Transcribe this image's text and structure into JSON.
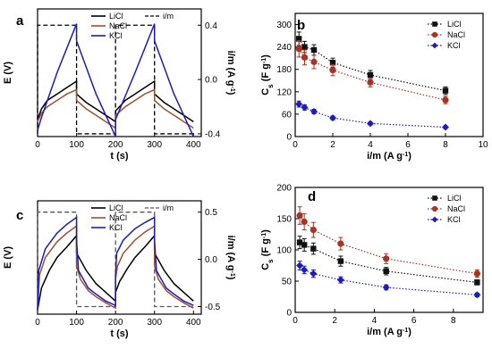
{
  "chart_data": [
    {
      "panel": "a",
      "type": "line",
      "xlabel": "t (s)",
      "ylabel": "E (V)",
      "y2label_parts": [
        "i/m (A g",
        "-1",
        ")"
      ],
      "xlim": [
        0,
        420
      ],
      "ylim": [
        -0.05,
        0.55
      ],
      "y2lim": [
        -0.42,
        0.52
      ],
      "xticks": [
        0,
        100,
        200,
        300,
        400
      ],
      "yticks": [],
      "y2ticks": [
        -0.4,
        0.0,
        0.4
      ],
      "y2tick_labels": [
        "-0.4",
        "0.0",
        "0.4"
      ],
      "legend": {
        "position": "top",
        "entries": [
          "LiCl",
          "NaCl",
          "KCl",
          "i/m"
        ]
      },
      "current_series": {
        "name": "i/m",
        "color": "#000000",
        "dash": true,
        "x": [
          0,
          0,
          100,
          100,
          200,
          200,
          300,
          300,
          400
        ],
        "y": [
          -0.4,
          0.4,
          0.4,
          -0.4,
          -0.4,
          0.4,
          0.4,
          -0.4,
          -0.4
        ]
      },
      "series": [
        {
          "name": "LiCl",
          "color": "#000000",
          "x": [
            0,
            10,
            25,
            50,
            75,
            100,
            100,
            125,
            150,
            175,
            200,
            200,
            225,
            250,
            275,
            300,
            300,
            325,
            350,
            375,
            400
          ],
          "y": [
            0.03,
            0.08,
            0.12,
            0.15,
            0.18,
            0.21,
            0.15,
            0.11,
            0.08,
            0.05,
            0.02,
            0.07,
            0.12,
            0.15,
            0.18,
            0.21,
            0.15,
            0.11,
            0.08,
            0.05,
            0.02
          ]
        },
        {
          "name": "NaCl",
          "color": "#a0522d",
          "x": [
            0,
            10,
            25,
            50,
            75,
            100,
            100,
            125,
            150,
            175,
            200,
            200,
            225,
            250,
            275,
            300,
            300,
            325,
            350,
            375,
            400
          ],
          "y": [
            0.02,
            0.06,
            0.09,
            0.12,
            0.15,
            0.17,
            0.12,
            0.08,
            0.05,
            0.02,
            -0.01,
            0.05,
            0.09,
            0.12,
            0.15,
            0.17,
            0.12,
            0.08,
            0.05,
            0.02,
            -0.01
          ]
        },
        {
          "name": "KCl",
          "color": "#1a1acc",
          "x": [
            0,
            10,
            50,
            100,
            100,
            150,
            200,
            200,
            250,
            300,
            300,
            350,
            400
          ],
          "y": [
            -0.02,
            0.04,
            0.25,
            0.48,
            0.4,
            0.15,
            -0.05,
            0.03,
            0.25,
            0.48,
            0.4,
            0.15,
            -0.05
          ]
        }
      ]
    },
    {
      "panel": "b",
      "type": "scatter",
      "xlabel": "i/m (A g-1)",
      "xlabel_parts": [
        "i/m (A g",
        "-1",
        ")"
      ],
      "ylabel_parts": [
        "C",
        "s",
        " (F g",
        "-1",
        ")"
      ],
      "xlim": [
        0,
        10
      ],
      "ylim": [
        0,
        330
      ],
      "xticks": [
        0,
        2,
        4,
        6,
        8,
        10
      ],
      "yticks": [
        0,
        60,
        120,
        180,
        240,
        300
      ],
      "legend": {
        "position": "top-right",
        "entries": [
          "LiCl",
          "NaCl",
          "KCl"
        ]
      },
      "series": [
        {
          "name": "LiCl",
          "color": "#111111",
          "marker": "square",
          "x": [
            0.2,
            0.5,
            1,
            2,
            4,
            8
          ],
          "y": [
            262,
            240,
            232,
            198,
            165,
            123
          ],
          "err": [
            18,
            15,
            14,
            12,
            12,
            10
          ]
        },
        {
          "name": "NaCl",
          "color": "#b03020",
          "marker": "circle",
          "x": [
            0.2,
            0.5,
            1,
            2,
            4,
            8
          ],
          "y": [
            235,
            212,
            200,
            178,
            145,
            98
          ],
          "err": [
            22,
            20,
            18,
            15,
            12,
            10
          ]
        },
        {
          "name": "KCl",
          "color": "#1a1acc",
          "marker": "diamond",
          "x": [
            0.2,
            0.5,
            1,
            2,
            4,
            8
          ],
          "y": [
            87,
            78,
            67,
            50,
            35,
            25
          ],
          "err": [
            8,
            7,
            6,
            5,
            4,
            3
          ]
        }
      ]
    },
    {
      "panel": "c",
      "type": "line",
      "xlabel": "t (s)",
      "ylabel": "E (V)",
      "y2label_parts": [
        "i/m (A g",
        "-1",
        ")"
      ],
      "xlim": [
        0,
        420
      ],
      "ylim": [
        -0.35,
        0.95
      ],
      "y2lim": [
        -0.58,
        0.62
      ],
      "xticks": [
        0,
        100,
        200,
        300,
        400
      ],
      "yticks": [],
      "y2ticks": [
        -0.5,
        0.0,
        0.5
      ],
      "y2tick_labels": [
        "-0.5",
        "0.0",
        "0.5"
      ],
      "legend": {
        "position": "top",
        "entries": [
          "LiCl",
          "NaCl",
          "KCl",
          "i/m"
        ]
      },
      "current_series": {
        "name": "i/m",
        "color": "#555555",
        "dash": true,
        "x": [
          0,
          0,
          100,
          100,
          200,
          200,
          300,
          300,
          400
        ],
        "y": [
          -0.5,
          0.5,
          0.5,
          -0.5,
          -0.5,
          0.5,
          0.5,
          -0.5,
          -0.5
        ]
      },
      "series": [
        {
          "name": "LiCl",
          "color": "#000000",
          "x": [
            0,
            10,
            30,
            50,
            75,
            100,
            100,
            125,
            150,
            175,
            200,
            200,
            210,
            230,
            250,
            275,
            300,
            300,
            325,
            350,
            375,
            400
          ],
          "y": [
            -0.3,
            -0.05,
            0.15,
            0.3,
            0.42,
            0.55,
            0.35,
            0.15,
            0.0,
            -0.1,
            -0.2,
            -0.1,
            0.02,
            0.17,
            0.3,
            0.42,
            0.55,
            0.35,
            0.15,
            0.0,
            -0.1,
            -0.2
          ]
        },
        {
          "name": "NaCl",
          "color": "#a0522d",
          "x": [
            0,
            5,
            20,
            50,
            75,
            100,
            100,
            110,
            130,
            150,
            175,
            200,
            200,
            205,
            220,
            250,
            275,
            300,
            300,
            310,
            330,
            350,
            375,
            400
          ],
          "y": [
            -0.3,
            0.1,
            0.3,
            0.48,
            0.58,
            0.66,
            0.2,
            0.05,
            -0.08,
            -0.15,
            -0.22,
            -0.28,
            0.05,
            0.2,
            0.35,
            0.5,
            0.59,
            0.66,
            0.2,
            0.05,
            -0.08,
            -0.15,
            -0.22,
            -0.28
          ]
        },
        {
          "name": "KCl",
          "color": "#1a1acc",
          "x": [
            0,
            3,
            20,
            50,
            75,
            100,
            100,
            105,
            130,
            150,
            175,
            200,
            200,
            203,
            220,
            250,
            275,
            300,
            300,
            305,
            330,
            350,
            375,
            400
          ],
          "y": [
            -0.3,
            0.15,
            0.4,
            0.58,
            0.68,
            0.76,
            0.5,
            0.15,
            -0.05,
            -0.12,
            -0.2,
            -0.25,
            0.1,
            0.35,
            0.5,
            0.63,
            0.7,
            0.76,
            0.5,
            0.15,
            -0.05,
            -0.12,
            -0.2,
            -0.25
          ]
        }
      ]
    },
    {
      "panel": "d",
      "type": "scatter",
      "xlabel": "i/m (A g-1)",
      "xlabel_parts": [
        "i/m (A g",
        "-1",
        ")"
      ],
      "ylabel_parts": [
        "C",
        "s",
        " (F g",
        "-1",
        ")"
      ],
      "xlim": [
        0,
        9.5
      ],
      "ylim": [
        0,
        200
      ],
      "xticks": [
        0,
        2,
        4,
        6,
        8
      ],
      "yticks": [
        0,
        50,
        100,
        150,
        200
      ],
      "legend": {
        "position": "top-right",
        "entries": [
          "LiCl",
          "NaCl",
          "KCl"
        ]
      },
      "series": [
        {
          "name": "LiCl",
          "color": "#111111",
          "marker": "square",
          "x": [
            0.23,
            0.46,
            0.92,
            2.3,
            4.6,
            9.2
          ],
          "y": [
            112,
            108,
            102,
            82,
            66,
            48
          ],
          "err": [
            10,
            10,
            9,
            8,
            6,
            4
          ]
        },
        {
          "name": "NaCl",
          "color": "#b03020",
          "marker": "circle",
          "x": [
            0.23,
            0.46,
            0.92,
            2.3,
            4.6,
            9.2
          ],
          "y": [
            155,
            145,
            132,
            110,
            86,
            62
          ],
          "err": [
            14,
            13,
            12,
            10,
            8,
            6
          ]
        },
        {
          "name": "KCl",
          "color": "#1a1acc",
          "marker": "diamond",
          "x": [
            0.23,
            0.46,
            0.92,
            2.3,
            4.6,
            9.2
          ],
          "y": [
            75,
            68,
            62,
            52,
            40,
            28
          ],
          "err": [
            7,
            6,
            6,
            5,
            4,
            3
          ]
        }
      ]
    }
  ]
}
